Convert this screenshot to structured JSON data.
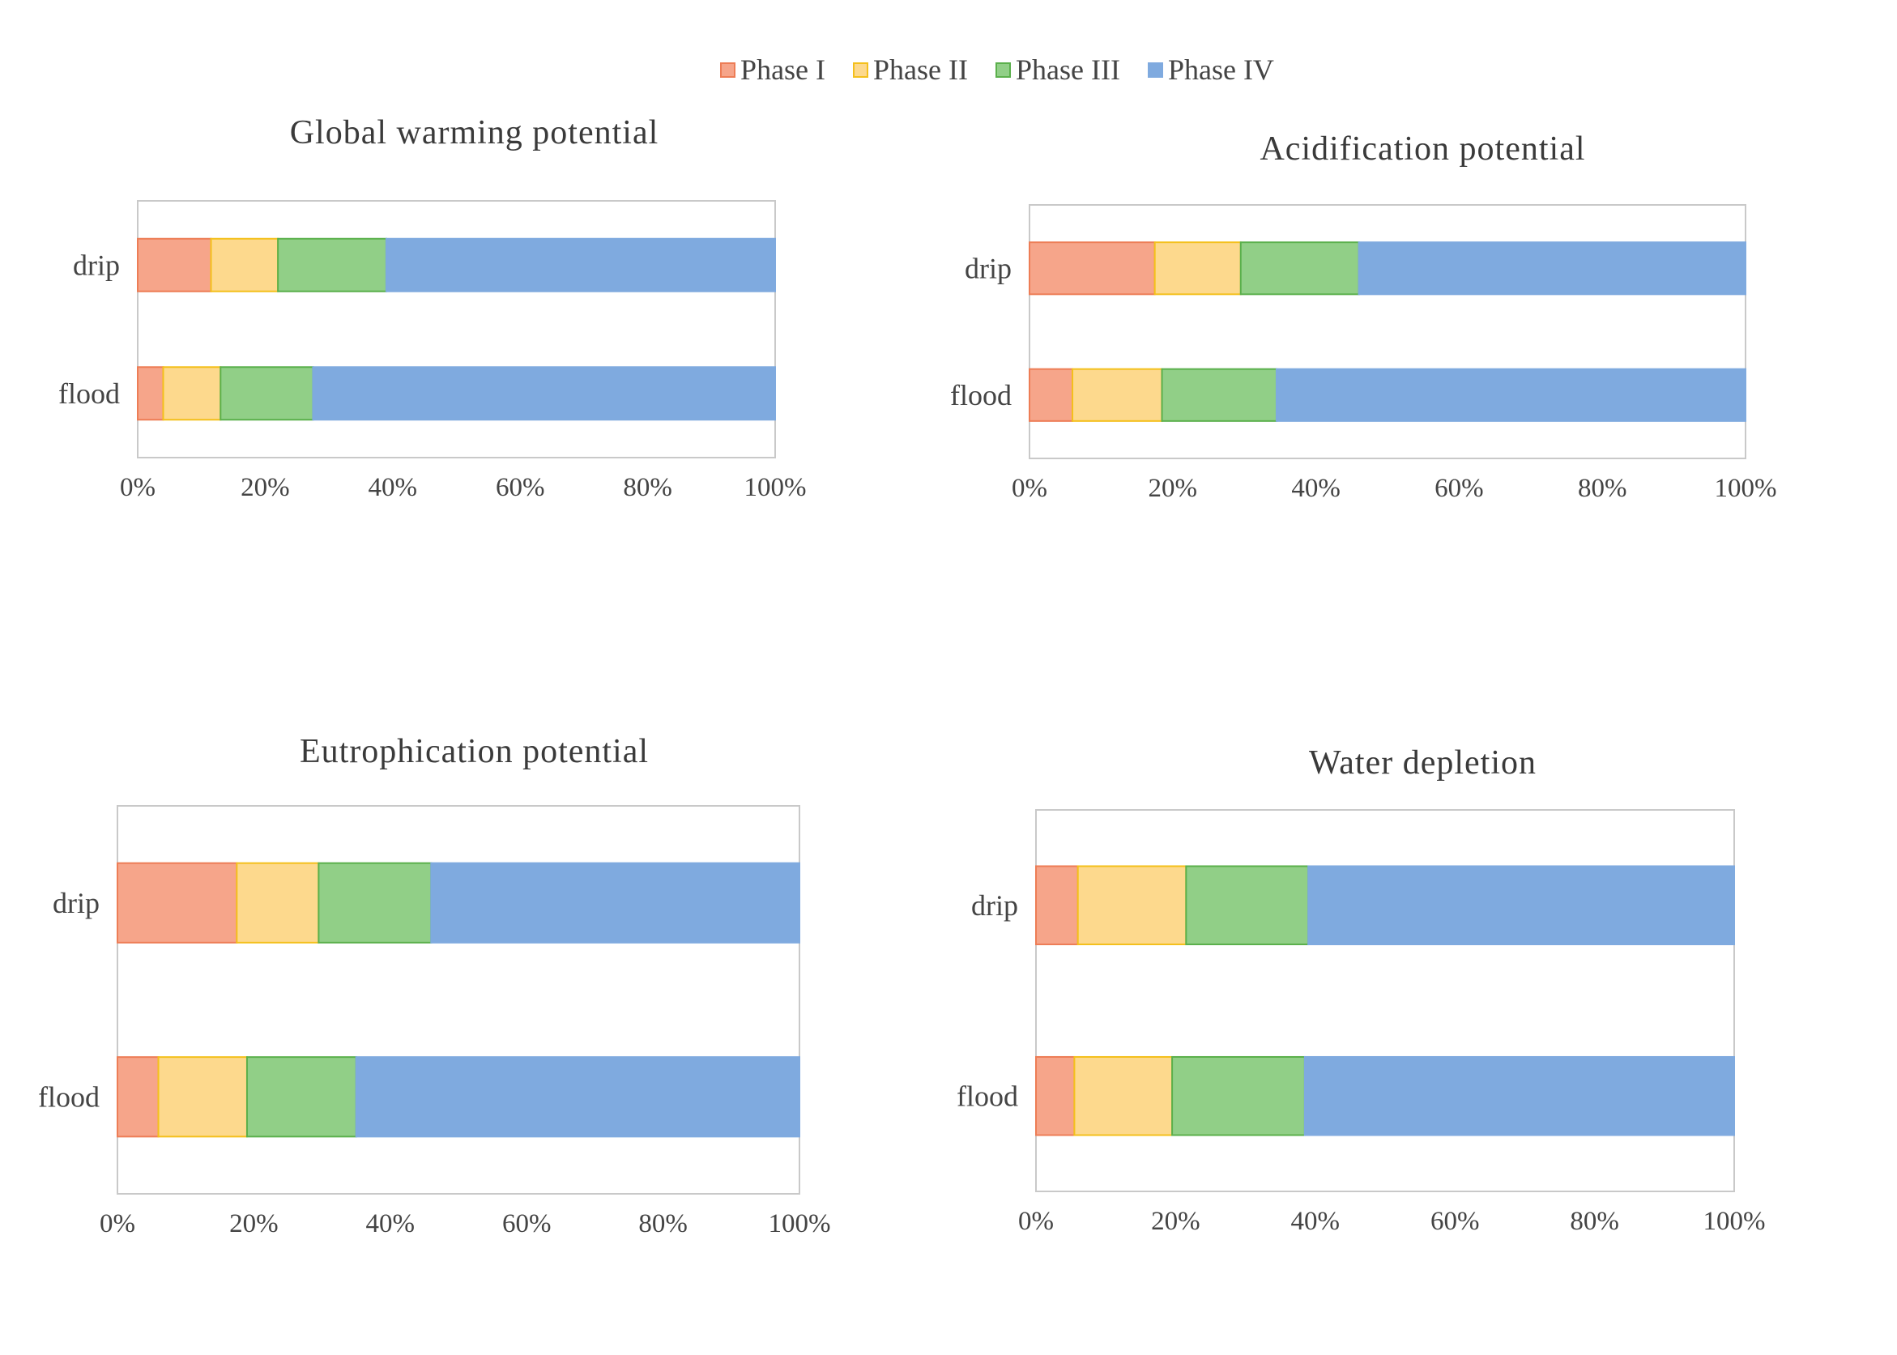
{
  "legend": {
    "items": [
      {
        "label": "Phase I",
        "color": "#f6a58a",
        "border": "#ed7d56"
      },
      {
        "label": "Phase II",
        "color": "#fdd98d",
        "border": "#f4c01c"
      },
      {
        "label": "Phase III",
        "color": "#91cf87",
        "border": "#5bb04c"
      },
      {
        "label": "Phase IV",
        "color": "#7faadf",
        "border": "#7faadf"
      }
    ]
  },
  "chart_data": [
    {
      "type": "bar",
      "orientation": "horizontal",
      "stacked": true,
      "title": "Global warming  potential",
      "categories": [
        "drip",
        "flood"
      ],
      "series": [
        {
          "name": "Phase I",
          "values": [
            11.5,
            4
          ]
        },
        {
          "name": "Phase II",
          "values": [
            10.5,
            9
          ]
        },
        {
          "name": "Phase III",
          "values": [
            17,
            14.5
          ]
        },
        {
          "name": "Phase IV",
          "values": [
            61,
            72.5
          ]
        }
      ],
      "xlim": [
        0,
        100
      ],
      "xticks": [
        "0%",
        "20%",
        "40%",
        "60%",
        "80%",
        "100%"
      ]
    },
    {
      "type": "bar",
      "orientation": "horizontal",
      "stacked": true,
      "title": "Acidification  potential",
      "categories": [
        "drip",
        "flood"
      ],
      "series": [
        {
          "name": "Phase I",
          "values": [
            17.5,
            6
          ]
        },
        {
          "name": "Phase II",
          "values": [
            12,
            12.5
          ]
        },
        {
          "name": "Phase III",
          "values": [
            16.5,
            16
          ]
        },
        {
          "name": "Phase IV",
          "values": [
            54,
            65.5
          ]
        }
      ],
      "xlim": [
        0,
        100
      ],
      "xticks": [
        "0%",
        "20%",
        "40%",
        "60%",
        "80%",
        "100%"
      ]
    },
    {
      "type": "bar",
      "orientation": "horizontal",
      "stacked": true,
      "title": "Eutrophication  potential",
      "categories": [
        "drip",
        "flood"
      ],
      "series": [
        {
          "name": "Phase I",
          "values": [
            17.5,
            6
          ]
        },
        {
          "name": "Phase II",
          "values": [
            12,
            13
          ]
        },
        {
          "name": "Phase III",
          "values": [
            16.5,
            16
          ]
        },
        {
          "name": "Phase IV",
          "values": [
            54,
            65
          ]
        }
      ],
      "xlim": [
        0,
        100
      ],
      "xticks": [
        "0%",
        "20%",
        "40%",
        "60%",
        "80%",
        "100%"
      ]
    },
    {
      "type": "bar",
      "orientation": "horizontal",
      "stacked": true,
      "title": "Water depletion",
      "categories": [
        "drip",
        "flood"
      ],
      "series": [
        {
          "name": "Phase I",
          "values": [
            6,
            5.5
          ]
        },
        {
          "name": "Phase II",
          "values": [
            15.5,
            14
          ]
        },
        {
          "name": "Phase III",
          "values": [
            17.5,
            19
          ]
        },
        {
          "name": "Phase IV",
          "values": [
            61,
            61.5
          ]
        }
      ],
      "xlim": [
        0,
        100
      ],
      "xticks": [
        "0%",
        "20%",
        "40%",
        "60%",
        "80%",
        "100%"
      ]
    }
  ]
}
